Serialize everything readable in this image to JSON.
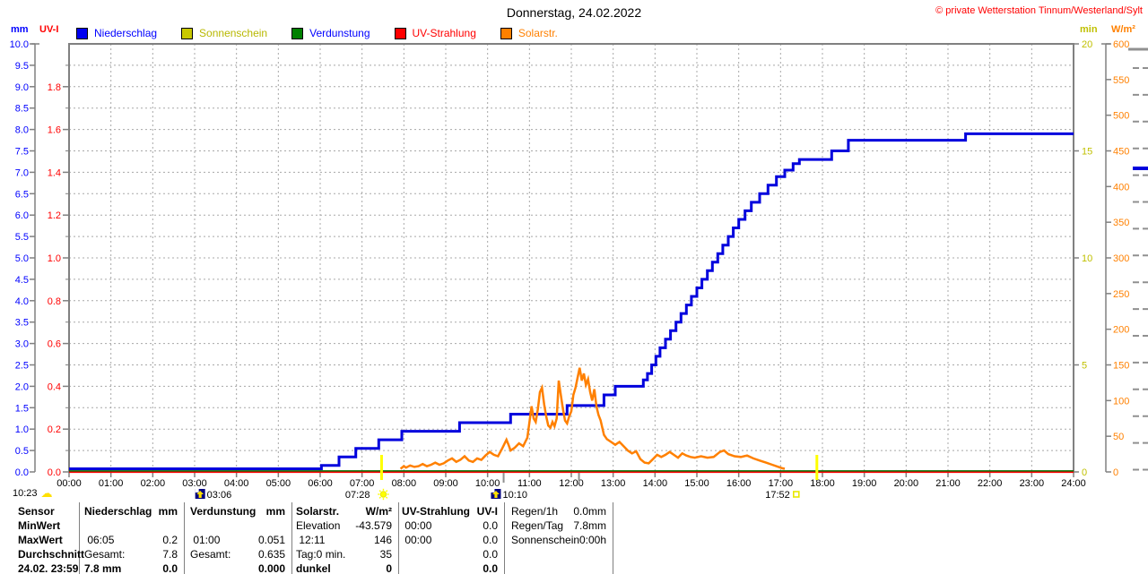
{
  "header": {
    "title": "Donnerstag, 24.02.2022",
    "credit": "© private Wetterstation Tinnum/Westerland/Sylt"
  },
  "legend": {
    "items": [
      {
        "label": "Niederschlag",
        "swatch": "#0000f0",
        "text_color": "#0000ff"
      },
      {
        "label": "Sonnenschein",
        "swatch": "#c8c800",
        "text_color": "#b8b800"
      },
      {
        "label": "Verdunstung",
        "swatch": "#008000",
        "text_color": "#0000ff"
      },
      {
        "label": "UV-Strahlung",
        "swatch": "#ff0000",
        "text_color": "#ff0000"
      },
      {
        "label": "Solarstr.",
        "swatch": "#ff8000",
        "text_color": "#ff8000"
      }
    ]
  },
  "chart_data": {
    "type": "line",
    "title": "Donnerstag, 24.02.2022",
    "x": {
      "min": 0,
      "max": 24,
      "tick_labels": [
        "00:00",
        "01:00",
        "02:00",
        "03:00",
        "04:00",
        "05:00",
        "06:00",
        "07:00",
        "08:00",
        "09:00",
        "10:00",
        "11:00",
        "12:00",
        "13:00",
        "14:00",
        "15:00",
        "16:00",
        "17:00",
        "18:00",
        "19:00",
        "20:00",
        "21:00",
        "22:00",
        "23:00",
        "24:00"
      ]
    },
    "axes": [
      {
        "id": "mm",
        "label": "mm",
        "color": "#0000ff",
        "min": 0,
        "max": 10,
        "label_step": 0.5,
        "decimals": 1,
        "side": "outer-left"
      },
      {
        "id": "uvi",
        "label": "UV-I",
        "color": "#ff0000",
        "min": 0,
        "max": 2,
        "label_step": 0.2,
        "decimals": 1,
        "side": "inner-left"
      },
      {
        "id": "min",
        "label": "min",
        "color": "#c0c000",
        "min": 0,
        "max": 20,
        "label_step": 5,
        "decimals": 0,
        "side": "inner-right"
      },
      {
        "id": "wm2",
        "label": "W/m²",
        "color": "#ff8000",
        "min": 0,
        "max": 600,
        "label_step": 50,
        "decimals": 0,
        "side": "outer-right"
      }
    ],
    "grid": {
      "on": true,
      "x_step_hours": 1,
      "y_step_mm": 0.5
    },
    "series": [
      {
        "name": "Niederschlag",
        "axis": "mm",
        "color": "#0000dd",
        "style": "step",
        "width": 3,
        "points": [
          [
            0,
            0
          ],
          [
            6.03,
            0.15
          ],
          [
            6.45,
            0.35
          ],
          [
            6.85,
            0.55
          ],
          [
            7.4,
            0.75
          ],
          [
            7.95,
            0.95
          ],
          [
            9.33,
            1.15
          ],
          [
            10.55,
            1.35
          ],
          [
            11.9,
            1.55
          ],
          [
            12.78,
            1.8
          ],
          [
            13.05,
            2.0
          ],
          [
            13.72,
            2.15
          ],
          [
            13.82,
            2.3
          ],
          [
            13.92,
            2.5
          ],
          [
            14.02,
            2.7
          ],
          [
            14.12,
            2.9
          ],
          [
            14.25,
            3.1
          ],
          [
            14.37,
            3.3
          ],
          [
            14.5,
            3.5
          ],
          [
            14.62,
            3.7
          ],
          [
            14.75,
            3.9
          ],
          [
            14.87,
            4.1
          ],
          [
            15.0,
            4.3
          ],
          [
            15.12,
            4.5
          ],
          [
            15.25,
            4.7
          ],
          [
            15.37,
            4.9
          ],
          [
            15.5,
            5.1
          ],
          [
            15.62,
            5.3
          ],
          [
            15.75,
            5.5
          ],
          [
            15.87,
            5.7
          ],
          [
            16.0,
            5.9
          ],
          [
            16.15,
            6.1
          ],
          [
            16.3,
            6.3
          ],
          [
            16.5,
            6.5
          ],
          [
            16.7,
            6.7
          ],
          [
            16.9,
            6.9
          ],
          [
            17.1,
            7.05
          ],
          [
            17.3,
            7.2
          ],
          [
            17.45,
            7.3
          ],
          [
            18.22,
            7.5
          ],
          [
            18.62,
            7.75
          ],
          [
            21.42,
            7.9
          ],
          [
            24,
            7.9
          ]
        ]
      },
      {
        "name": "Sonnenschein",
        "axis": "min",
        "color": "#c8c800",
        "style": "line",
        "width": 2,
        "points": []
      },
      {
        "name": "Verdunstung",
        "axis": "mm",
        "color": "#007000",
        "style": "baseline",
        "width": 1.8,
        "points": [
          [
            0,
            0
          ],
          [
            24,
            0
          ]
        ]
      },
      {
        "name": "UV-Strahlung",
        "axis": "uvi",
        "color": "#ff0000",
        "style": "baseline2",
        "width": 1.5,
        "points": [
          [
            0,
            0
          ],
          [
            24,
            0
          ]
        ]
      },
      {
        "name": "Solarstr.",
        "axis": "wm2",
        "color": "#ff8000",
        "style": "line",
        "width": 2.5,
        "points": [
          [
            7.92,
            4
          ],
          [
            8.0,
            8
          ],
          [
            8.05,
            6
          ],
          [
            8.15,
            9
          ],
          [
            8.25,
            7
          ],
          [
            8.35,
            8
          ],
          [
            8.45,
            11
          ],
          [
            8.55,
            8
          ],
          [
            8.65,
            10
          ],
          [
            8.75,
            13
          ],
          [
            8.85,
            10
          ],
          [
            8.95,
            12
          ],
          [
            9.05,
            16
          ],
          [
            9.15,
            19
          ],
          [
            9.25,
            14
          ],
          [
            9.35,
            17
          ],
          [
            9.45,
            22
          ],
          [
            9.55,
            16
          ],
          [
            9.65,
            14
          ],
          [
            9.75,
            19
          ],
          [
            9.85,
            17
          ],
          [
            9.95,
            23
          ],
          [
            10.05,
            28
          ],
          [
            10.15,
            24
          ],
          [
            10.25,
            22
          ],
          [
            10.35,
            33
          ],
          [
            10.45,
            45
          ],
          [
            10.5,
            38
          ],
          [
            10.55,
            30
          ],
          [
            10.65,
            34
          ],
          [
            10.75,
            40
          ],
          [
            10.85,
            36
          ],
          [
            10.95,
            48
          ],
          [
            11.05,
            92
          ],
          [
            11.1,
            75
          ],
          [
            11.15,
            70
          ],
          [
            11.2,
            88
          ],
          [
            11.25,
            112
          ],
          [
            11.3,
            118
          ],
          [
            11.35,
            95
          ],
          [
            11.4,
            78
          ],
          [
            11.45,
            65
          ],
          [
            11.5,
            62
          ],
          [
            11.55,
            70
          ],
          [
            11.6,
            64
          ],
          [
            11.65,
            75
          ],
          [
            11.7,
            128
          ],
          [
            11.75,
            108
          ],
          [
            11.8,
            88
          ],
          [
            11.85,
            72
          ],
          [
            11.9,
            68
          ],
          [
            11.95,
            78
          ],
          [
            12.0,
            85
          ],
          [
            12.05,
            108
          ],
          [
            12.1,
            118
          ],
          [
            12.15,
            132
          ],
          [
            12.2,
            146
          ],
          [
            12.25,
            128
          ],
          [
            12.3,
            138
          ],
          [
            12.35,
            122
          ],
          [
            12.4,
            130
          ],
          [
            12.45,
            112
          ],
          [
            12.5,
            100
          ],
          [
            12.55,
            116
          ],
          [
            12.6,
            92
          ],
          [
            12.65,
            80
          ],
          [
            12.7,
            72
          ],
          [
            12.78,
            52
          ],
          [
            12.85,
            46
          ],
          [
            12.95,
            42
          ],
          [
            13.05,
            38
          ],
          [
            13.15,
            42
          ],
          [
            13.25,
            36
          ],
          [
            13.35,
            30
          ],
          [
            13.45,
            26
          ],
          [
            13.55,
            29
          ],
          [
            13.65,
            18
          ],
          [
            13.75,
            13
          ],
          [
            13.85,
            12
          ],
          [
            13.95,
            18
          ],
          [
            14.05,
            24
          ],
          [
            14.15,
            21
          ],
          [
            14.25,
            24
          ],
          [
            14.35,
            28
          ],
          [
            14.45,
            24
          ],
          [
            14.55,
            20
          ],
          [
            14.65,
            26
          ],
          [
            14.75,
            23
          ],
          [
            14.85,
            21
          ],
          [
            14.95,
            20
          ],
          [
            15.1,
            22
          ],
          [
            15.25,
            20
          ],
          [
            15.4,
            21
          ],
          [
            15.55,
            28
          ],
          [
            15.65,
            30
          ],
          [
            15.75,
            25
          ],
          [
            15.9,
            22
          ],
          [
            16.05,
            21
          ],
          [
            16.2,
            23
          ],
          [
            16.35,
            19
          ],
          [
            16.5,
            16
          ],
          [
            16.65,
            13
          ],
          [
            16.8,
            10
          ],
          [
            16.95,
            7
          ],
          [
            17.05,
            5
          ],
          [
            17.1,
            4
          ]
        ]
      }
    ],
    "events": [
      {
        "time": "03:06",
        "hour": 3.1,
        "icon": "moonset",
        "icon_side": "left"
      },
      {
        "time": "07:28",
        "hour": 7.467,
        "icon": "sunrise",
        "icon_side": "right",
        "axis_mark": "yellow",
        "dx": -13
      },
      {
        "time": "10:10",
        "hour": 10.167,
        "icon": "moonrise",
        "icon_side": "left"
      },
      {
        "time": "17:52",
        "hour": 17.867,
        "icon": "sunset",
        "icon_side": "right",
        "axis_mark": "yellow",
        "dx": -30
      },
      {
        "time": "",
        "hour": 10.383,
        "axis_mark": "gray"
      },
      {
        "time": "",
        "hour": 12.183,
        "axis_mark": "gray"
      }
    ],
    "status_marker": {
      "time": "10:23",
      "icon": "cloud"
    }
  },
  "table": {
    "row_labels": [
      "Sensor",
      "MinWert",
      "MaxWert",
      "Durchschnitt",
      "24.02. 23:59"
    ],
    "columns": [
      {
        "title": "Niederschlag",
        "unit": "mm",
        "rows": [
          [
            "",
            ""
          ],
          [
            " 06:05",
            "0.2"
          ],
          [
            "Gesamt:",
            "7.8"
          ],
          [
            "7.8 mm",
            "0.0"
          ]
        ]
      },
      {
        "title": "Verdunstung",
        "unit": "mm",
        "rows": [
          [
            "",
            ""
          ],
          [
            " 01:00",
            "0.051"
          ],
          [
            "Gesamt:",
            "0.635"
          ],
          [
            "",
            "0.000"
          ]
        ]
      },
      {
        "title": "Solarstr.",
        "unit": "W/m²",
        "rows": [
          [
            "Elevation",
            "-43.579"
          ],
          [
            " 12:11",
            "146"
          ],
          [
            "Tag:0 min.",
            "35"
          ],
          [
            "dunkel",
            "0"
          ]
        ]
      },
      {
        "title": "UV-Strahlung",
        "unit": "UV-I",
        "rows": [
          [
            " 00:00",
            "0.0"
          ],
          [
            " 00:00",
            "0.0"
          ],
          [
            "",
            "0.0"
          ],
          [
            "",
            "0.0"
          ]
        ]
      }
    ],
    "summary": [
      [
        "Regen/1h",
        "0.0mm"
      ],
      [
        "Regen/Tag",
        "7.8mm"
      ],
      [
        "Sonnenschein",
        "0:00h"
      ]
    ]
  }
}
